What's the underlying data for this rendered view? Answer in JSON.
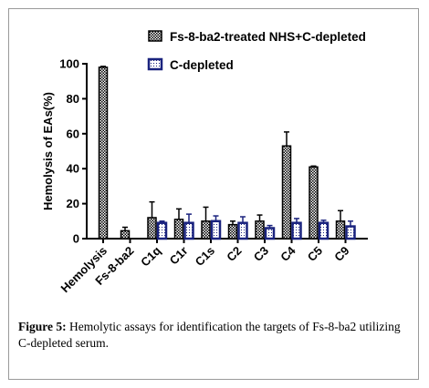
{
  "caption": {
    "label": "Figure 5:",
    "text": " Hemolytic assays for identification the targets of Fs-8-ba2 utilizing C-depleted serum."
  },
  "chart_data": {
    "type": "bar",
    "ylabel": "Hemolysis of EAs(%)",
    "xlabel": "",
    "ylim": [
      0,
      100
    ],
    "yticks": [
      0,
      20,
      40,
      60,
      80,
      100
    ],
    "legend_position": "top-right",
    "categories": [
      "Hemolysis",
      "Fs-8-ba2",
      "C1q",
      "C1r",
      "C1s",
      "C2",
      "C3",
      "C4",
      "C5",
      "C9"
    ],
    "series": [
      {
        "name": "Fs-8-ba2-treated NHS+C-depleted",
        "pattern": "checkered",
        "color": "#000000",
        "values": [
          98,
          4.5,
          12,
          11,
          10,
          8,
          10,
          53,
          41,
          10
        ],
        "errors": [
          0.5,
          2,
          9,
          6,
          8,
          2,
          3.5,
          8,
          0.5,
          6
        ]
      },
      {
        "name": "C-depleted",
        "pattern": "dotted",
        "color": "#1a237e",
        "values": [
          null,
          null,
          9,
          9,
          10,
          9,
          6,
          9,
          9,
          7
        ],
        "errors": [
          null,
          null,
          1,
          5,
          3,
          3.5,
          1.5,
          2.5,
          1.5,
          3
        ]
      }
    ]
  }
}
